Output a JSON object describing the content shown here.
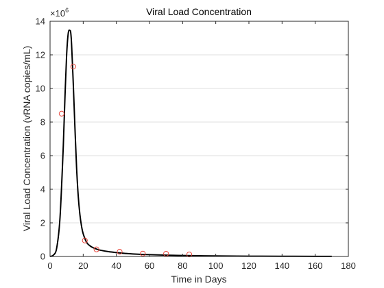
{
  "chart_data": {
    "type": "line",
    "title": "Viral Load Concentration",
    "xlabel": "Time in Days",
    "ylabel": "Viral Load Concentration (vRNA copies/mL)",
    "y_exponent_label": "×10",
    "y_exponent_power": "6",
    "xlim": [
      0,
      180
    ],
    "ylim": [
      0,
      14000000
    ],
    "x_ticks": [
      0,
      20,
      40,
      60,
      80,
      100,
      120,
      140,
      160,
      180
    ],
    "x_tick_labels": [
      "0",
      "20",
      "40",
      "60",
      "80",
      "100",
      "120",
      "140",
      "160",
      "180"
    ],
    "y_ticks": [
      0,
      2000000,
      4000000,
      6000000,
      8000000,
      10000000,
      12000000,
      14000000
    ],
    "y_tick_labels": [
      "0",
      "2",
      "4",
      "6",
      "8",
      "10",
      "12",
      "14"
    ],
    "grid": "horizontal",
    "colors": {
      "model": "#000000",
      "observed": "#e8463c",
      "axes": "#262626",
      "grid": "#dfdfdf"
    },
    "series": [
      {
        "style": "line",
        "x": [
          0,
          2,
          4,
          6,
          8,
          9,
          10,
          11,
          12,
          12.5,
          13,
          14,
          15,
          16,
          17,
          18,
          19,
          20,
          22,
          24,
          26,
          28,
          30,
          35,
          40,
          45,
          50,
          60,
          70,
          80,
          90,
          100,
          120,
          140,
          160,
          170
        ],
        "y": [
          0,
          80000,
          500000,
          2300000,
          6600000,
          9500000,
          12000000,
          13300000,
          13450000,
          13300000,
          12600000,
          10300000,
          7700000,
          5300000,
          3600000,
          2500000,
          1800000,
          1350000,
          850000,
          640000,
          520000,
          440000,
          380000,
          290000,
          230000,
          185000,
          150000,
          105000,
          75000,
          55000,
          40000,
          30000,
          17000,
          10000,
          6000,
          5000
        ]
      },
      {
        "style": "markers",
        "x": [
          7,
          14,
          21,
          28,
          42,
          56,
          70,
          84
        ],
        "y": [
          8500000,
          11300000,
          950000,
          420000,
          280000,
          170000,
          160000,
          120000
        ]
      }
    ]
  }
}
